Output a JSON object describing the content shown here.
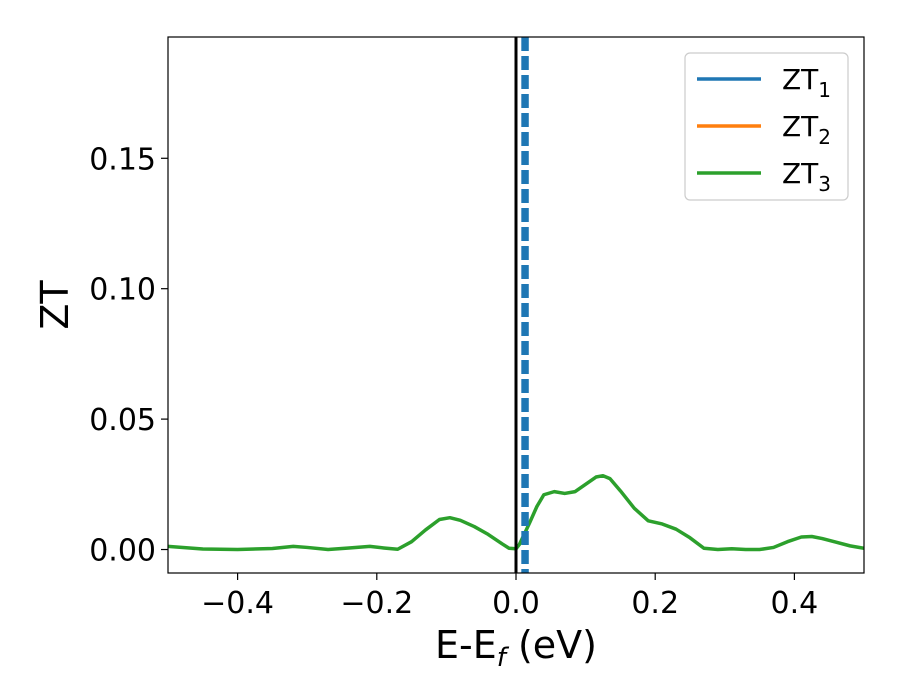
{
  "chart_data": {
    "type": "line",
    "title": "",
    "xlabel": {
      "base": "E-E",
      "sub": "f",
      "suffix": " (eV)"
    },
    "ylabel": "ZT",
    "xlim": [
      -0.5,
      0.5
    ],
    "ylim": [
      -0.009,
      0.1965
    ],
    "xticks": [
      {
        "value": -0.4,
        "label": "−0.4"
      },
      {
        "value": -0.2,
        "label": "−0.2"
      },
      {
        "value": 0.0,
        "label": "0.0"
      },
      {
        "value": 0.2,
        "label": "0.2"
      },
      {
        "value": 0.4,
        "label": "0.4"
      }
    ],
    "yticks": [
      {
        "value": 0.0,
        "label": "0.00"
      },
      {
        "value": 0.05,
        "label": "0.05"
      },
      {
        "value": 0.1,
        "label": "0.10"
      },
      {
        "value": 0.15,
        "label": "0.15"
      }
    ],
    "grid": false,
    "legend_position": "top-right",
    "series": [
      {
        "name": "ZT",
        "sub": "1",
        "color": "#1f77b4",
        "x": [],
        "y": []
      },
      {
        "name": "ZT",
        "sub": "2",
        "color": "#ff7f0e",
        "x": [],
        "y": []
      },
      {
        "name": "ZT",
        "sub": "3",
        "color": "#2ca02c",
        "x": [
          -0.5,
          -0.45,
          -0.4,
          -0.35,
          -0.32,
          -0.3,
          -0.27,
          -0.24,
          -0.21,
          -0.19,
          -0.17,
          -0.15,
          -0.13,
          -0.11,
          -0.095,
          -0.08,
          -0.06,
          -0.04,
          -0.02,
          -0.01,
          0.0,
          0.005,
          0.01,
          0.02,
          0.03,
          0.04,
          0.055,
          0.07,
          0.085,
          0.1,
          0.115,
          0.125,
          0.135,
          0.15,
          0.17,
          0.19,
          0.21,
          0.23,
          0.25,
          0.27,
          0.29,
          0.31,
          0.33,
          0.35,
          0.37,
          0.39,
          0.41,
          0.425,
          0.44,
          0.46,
          0.48,
          0.5
        ],
        "y": [
          0.0012,
          0.0002,
          0.0,
          0.0004,
          0.0012,
          0.0008,
          0.0,
          0.0006,
          0.0012,
          0.0006,
          0.0001,
          0.003,
          0.0075,
          0.0115,
          0.0122,
          0.0112,
          0.0088,
          0.0058,
          0.0022,
          0.0005,
          0.0003,
          0.002,
          0.0048,
          0.0105,
          0.0165,
          0.021,
          0.0222,
          0.0215,
          0.0222,
          0.025,
          0.0278,
          0.0283,
          0.0272,
          0.0225,
          0.0158,
          0.011,
          0.0098,
          0.0078,
          0.0045,
          0.0005,
          0.0,
          0.0003,
          0.0,
          0.0,
          0.0008,
          0.003,
          0.0048,
          0.005,
          0.0042,
          0.0028,
          0.0014,
          0.0005
        ]
      }
    ],
    "vlines": [
      {
        "x": 0.0,
        "color": "#000000",
        "style": "solid"
      },
      {
        "x": 0.0105,
        "color": "#1f77b4",
        "style": "dashed"
      },
      {
        "x": 0.0155,
        "color": "#1f77b4",
        "style": "dashed"
      }
    ]
  }
}
